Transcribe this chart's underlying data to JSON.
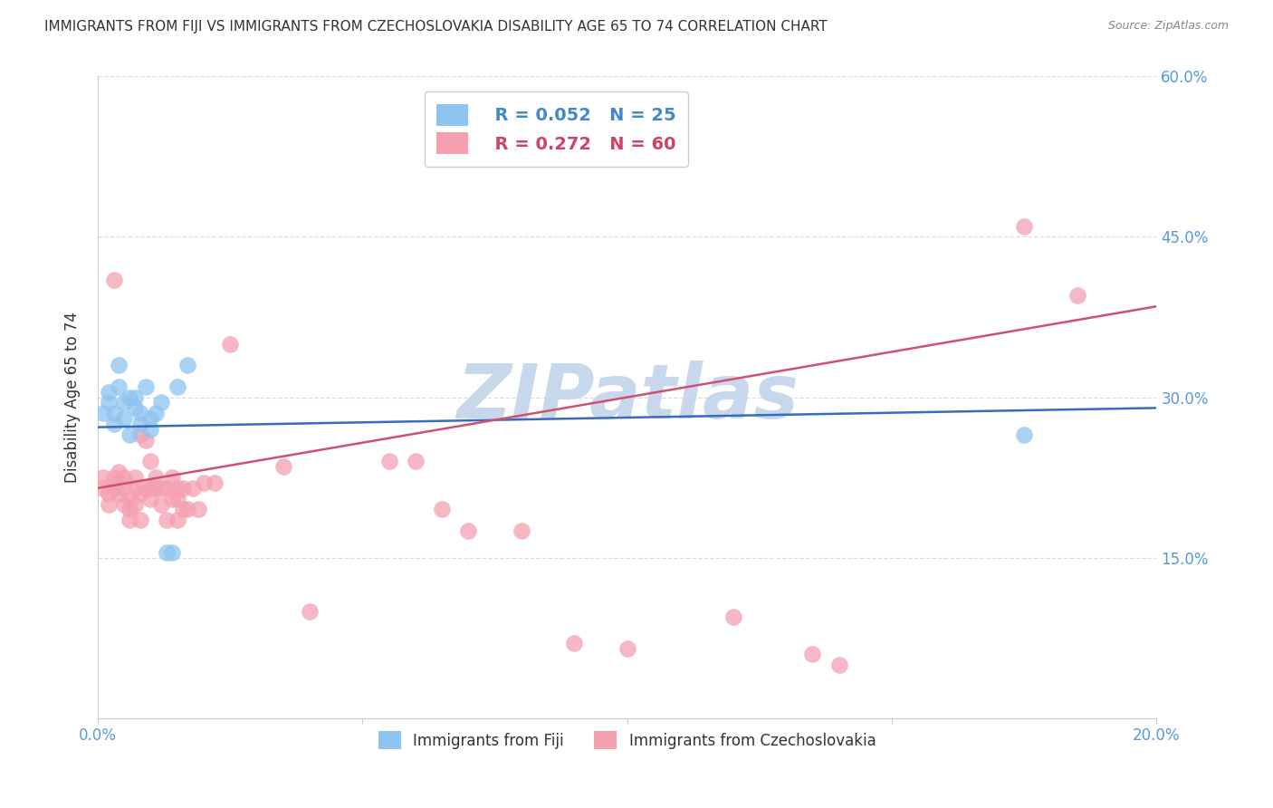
{
  "title": "IMMIGRANTS FROM FIJI VS IMMIGRANTS FROM CZECHOSLOVAKIA DISABILITY AGE 65 TO 74 CORRELATION CHART",
  "source": "Source: ZipAtlas.com",
  "ylabel": "Disability Age 65 to 74",
  "xlim": [
    0.0,
    0.2
  ],
  "ylim": [
    0.0,
    0.6
  ],
  "yticks": [
    0.0,
    0.15,
    0.3,
    0.45,
    0.6
  ],
  "fiji_color": "#8EC4F0",
  "czech_color": "#F4A0B0",
  "fiji_R": 0.052,
  "fiji_N": 25,
  "czech_R": 0.272,
  "czech_N": 60,
  "fiji_line_color": "#3A6BBF",
  "czech_line_color": "#D05070",
  "watermark": "ZIPatlas",
  "watermark_color": "#C8D8EC",
  "fiji_x": [
    0.001,
    0.002,
    0.002,
    0.003,
    0.003,
    0.004,
    0.004,
    0.005,
    0.005,
    0.006,
    0.006,
    0.007,
    0.007,
    0.008,
    0.008,
    0.009,
    0.01,
    0.01,
    0.011,
    0.012,
    0.013,
    0.014,
    0.015,
    0.017,
    0.175
  ],
  "fiji_y": [
    0.285,
    0.295,
    0.305,
    0.275,
    0.285,
    0.31,
    0.33,
    0.295,
    0.28,
    0.3,
    0.265,
    0.29,
    0.3,
    0.285,
    0.275,
    0.31,
    0.27,
    0.28,
    0.285,
    0.295,
    0.155,
    0.155,
    0.31,
    0.33,
    0.265
  ],
  "czech_x": [
    0.001,
    0.001,
    0.002,
    0.002,
    0.003,
    0.003,
    0.003,
    0.004,
    0.004,
    0.004,
    0.005,
    0.005,
    0.005,
    0.006,
    0.006,
    0.006,
    0.007,
    0.007,
    0.007,
    0.008,
    0.008,
    0.008,
    0.009,
    0.009,
    0.01,
    0.01,
    0.01,
    0.011,
    0.011,
    0.012,
    0.012,
    0.013,
    0.013,
    0.014,
    0.014,
    0.015,
    0.015,
    0.015,
    0.016,
    0.016,
    0.017,
    0.018,
    0.019,
    0.02,
    0.022,
    0.025,
    0.035,
    0.04,
    0.055,
    0.06,
    0.065,
    0.07,
    0.08,
    0.09,
    0.1,
    0.12,
    0.135,
    0.14,
    0.175,
    0.185
  ],
  "czech_y": [
    0.215,
    0.225,
    0.2,
    0.21,
    0.215,
    0.225,
    0.41,
    0.21,
    0.22,
    0.23,
    0.2,
    0.215,
    0.225,
    0.185,
    0.195,
    0.205,
    0.2,
    0.215,
    0.225,
    0.185,
    0.21,
    0.265,
    0.215,
    0.26,
    0.205,
    0.215,
    0.24,
    0.215,
    0.225,
    0.2,
    0.215,
    0.185,
    0.215,
    0.205,
    0.225,
    0.185,
    0.205,
    0.215,
    0.195,
    0.215,
    0.195,
    0.215,
    0.195,
    0.22,
    0.22,
    0.35,
    0.235,
    0.1,
    0.24,
    0.24,
    0.195,
    0.175,
    0.175,
    0.07,
    0.065,
    0.095,
    0.06,
    0.05,
    0.46,
    0.395
  ],
  "background_color": "#FFFFFF",
  "grid_color": "#DDDDDD",
  "title_color": "#333333",
  "axis_label_color": "#5599DD",
  "legend_color_fiji": "#4488CC",
  "legend_color_czech": "#CC4466"
}
